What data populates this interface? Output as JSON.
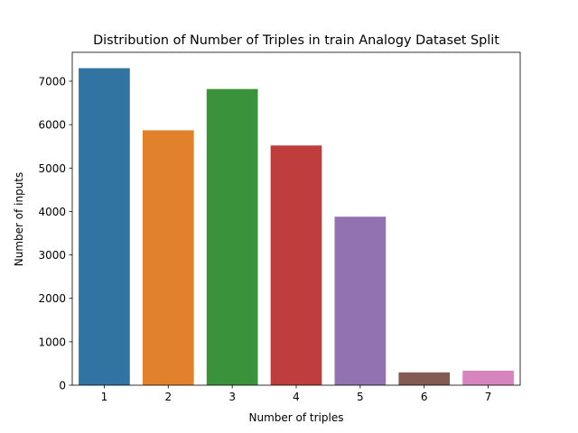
{
  "chart_data": {
    "type": "bar",
    "title": "Distribution of Number of Triples in train Analogy Dataset Split",
    "xlabel": "Number of triples",
    "ylabel": "Number of inputs",
    "categories": [
      "1",
      "2",
      "3",
      "4",
      "5",
      "6",
      "7"
    ],
    "values": [
      7300,
      5870,
      6820,
      5520,
      3880,
      295,
      335
    ],
    "colors": [
      "#3274a1",
      "#e1812c",
      "#3a923a",
      "#c03d3e",
      "#9372b2",
      "#845b53",
      "#d684bd"
    ],
    "ylim": [
      0,
      7665
    ],
    "yticks": [
      0,
      1000,
      2000,
      3000,
      4000,
      5000,
      6000,
      7000
    ],
    "grid": false,
    "legend": "none"
  }
}
